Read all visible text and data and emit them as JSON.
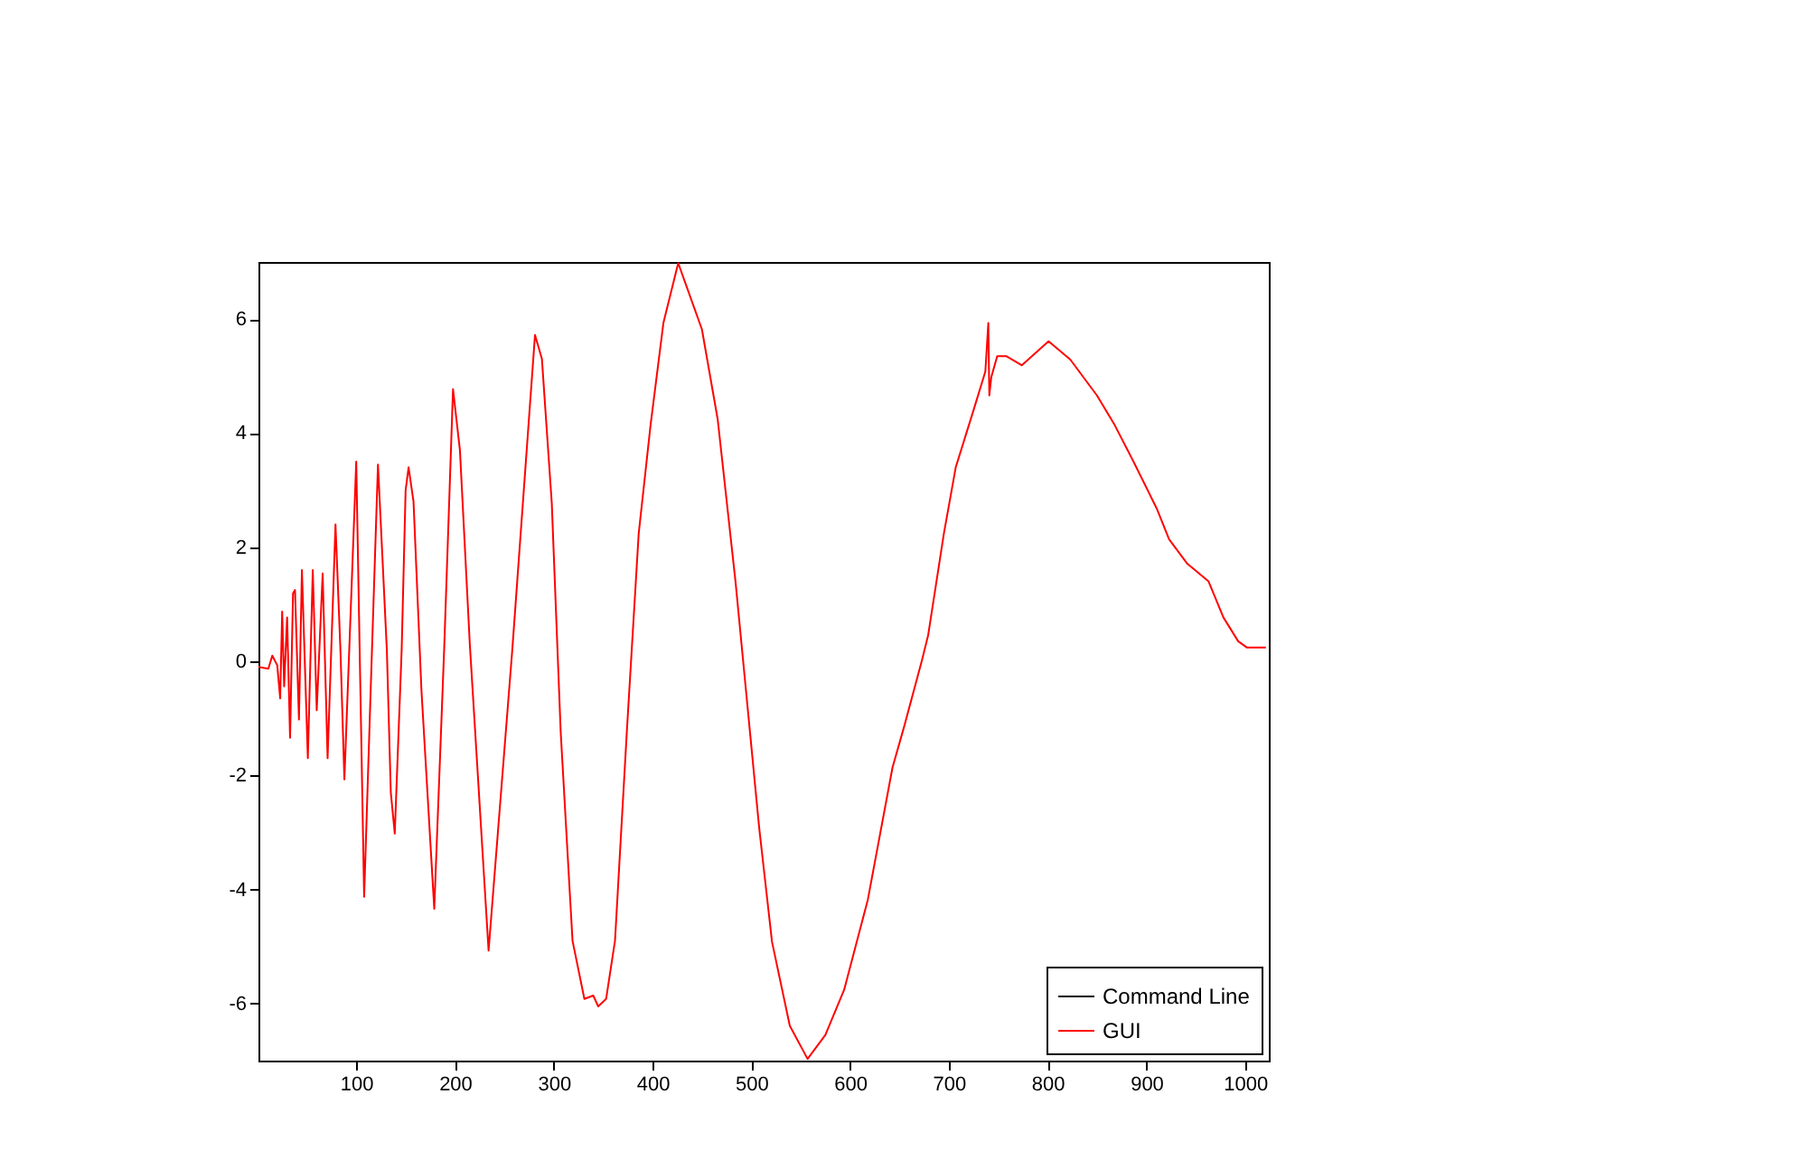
{
  "chart_data": {
    "type": "line",
    "xlim": [
      1,
      1024
    ],
    "ylim": [
      -7,
      7
    ],
    "xticks": [
      100,
      200,
      300,
      400,
      500,
      600,
      700,
      800,
      900,
      1000
    ],
    "yticks": [
      -6,
      -4,
      -2,
      0,
      2,
      4,
      6
    ],
    "grid": false,
    "legend": "bottom right",
    "line_style": "solid",
    "marker": "none",
    "x": [
      1,
      11,
      15,
      20,
      23,
      25,
      27,
      30,
      33,
      36,
      38,
      42,
      45,
      51,
      56,
      60,
      66,
      71,
      79,
      84,
      88,
      94,
      100,
      104,
      108,
      115,
      122,
      131,
      135,
      139,
      146,
      150,
      153,
      158,
      166,
      179,
      189,
      198,
      205,
      215,
      234,
      258,
      281,
      288,
      298,
      307,
      319,
      331,
      340,
      345,
      353,
      362,
      374,
      386,
      398,
      411,
      426,
      450,
      466,
      484,
      508,
      521,
      539,
      557,
      575,
      594,
      618,
      643,
      655,
      673,
      679,
      695,
      707,
      725,
      737,
      740,
      741,
      743,
      749,
      758,
      774,
      801,
      823,
      850,
      868,
      887,
      911,
      923,
      941,
      963,
      978,
      993,
      1002,
      1021
    ],
    "series": [
      {
        "name": "Command Line",
        "color": "#000000",
        "values": [
          null,
          null,
          null,
          null,
          null,
          null,
          null,
          null,
          null,
          null,
          null,
          null,
          null,
          null,
          null,
          null,
          null,
          null,
          null,
          null,
          null,
          null,
          null,
          null,
          null,
          null,
          null,
          null,
          null,
          null,
          null,
          null,
          null,
          null,
          null,
          null,
          null,
          null,
          null,
          null,
          null,
          null,
          null,
          null,
          null,
          null,
          null,
          null,
          null,
          null,
          null,
          null,
          null,
          null,
          null,
          null,
          null,
          null,
          null,
          null,
          null,
          null,
          null,
          null,
          null,
          null,
          null,
          null,
          null,
          null,
          null,
          null,
          null,
          null,
          null,
          null,
          null,
          null,
          null,
          null,
          null,
          null,
          null,
          null,
          null,
          null,
          null,
          null,
          null,
          null,
          null,
          null,
          null,
          null
        ]
      },
      {
        "name": "GUI",
        "color": "#ff0000",
        "values": [
          -0.1,
          -0.13,
          0.1,
          -0.07,
          -0.65,
          0.87,
          -0.44,
          0.77,
          -1.34,
          1.19,
          1.25,
          -1.02,
          1.6,
          -1.7,
          1.6,
          -0.86,
          1.54,
          -1.7,
          2.4,
          0.2,
          -2.07,
          0.7,
          3.5,
          -0.3,
          -4.13,
          -0.3,
          3.45,
          0.2,
          -2.3,
          -3.02,
          0.2,
          3.0,
          3.4,
          2.8,
          -0.5,
          -4.34,
          0.2,
          4.77,
          3.7,
          0.3,
          -5.07,
          0.2,
          5.72,
          5.3,
          2.77,
          -1.23,
          -4.9,
          -5.92,
          -5.86,
          -6.05,
          -5.92,
          -4.9,
          -1.23,
          2.24,
          4.14,
          5.93,
          6.98,
          5.82,
          4.24,
          1.4,
          -2.92,
          -4.92,
          -6.39,
          -6.97,
          -6.55,
          -5.76,
          -4.18,
          -1.86,
          -1.13,
          0.03,
          0.45,
          2.24,
          3.4,
          4.4,
          5.08,
          5.93,
          4.66,
          4.98,
          5.35,
          5.35,
          5.19,
          5.61,
          5.29,
          4.66,
          4.14,
          3.5,
          2.66,
          2.14,
          1.72,
          1.4,
          0.77,
          0.35,
          0.24,
          0.24
        ]
      }
    ]
  }
}
